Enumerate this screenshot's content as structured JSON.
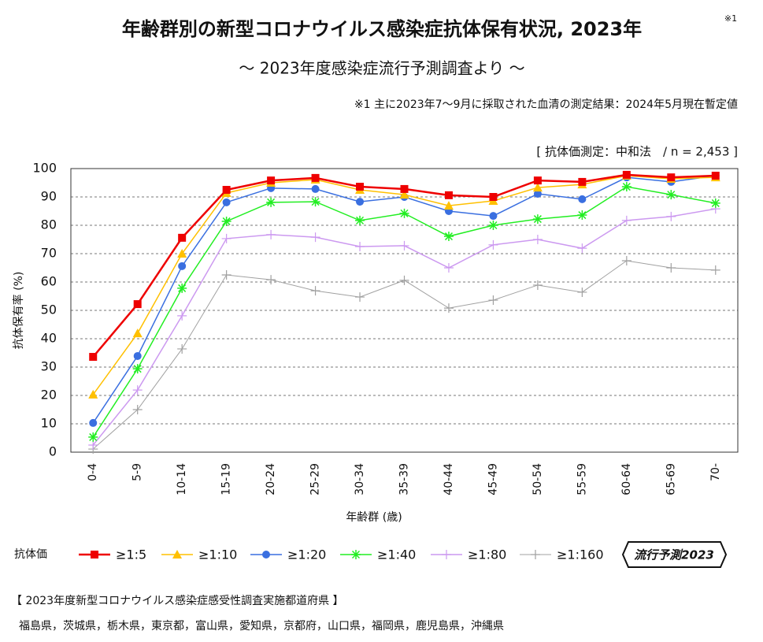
{
  "chart_data": {
    "type": "line",
    "title": "年齢群別の新型コロナウイルス感染症抗体保有状況, 2023年",
    "title_note": "※1",
    "subtitle": "～ 2023年度感染症流行予測調査より ～",
    "note": "※1  主に2023年7～9月に採取された血清の測定結果：2024年5月現在暫定値",
    "method": "[ 抗体価測定：中和法　/ n = 2,453 ]",
    "y_label": "抗体保有率 (%)",
    "x_label": "年齢群 (歳)",
    "legend_title": "抗体価",
    "badge": "流行予測2023",
    "categories": [
      "0-4",
      "5-9",
      "10-14",
      "15-19",
      "20-24",
      "25-29",
      "30-34",
      "35-39",
      "40-44",
      "45-49",
      "50-54",
      "55-59",
      "60-64",
      "65-69",
      "70-"
    ],
    "ylim": [
      0,
      100
    ],
    "yticks": [
      0,
      10,
      20,
      30,
      40,
      50,
      60,
      70,
      80,
      90,
      100
    ],
    "grid": true,
    "series": [
      {
        "name": "≥1:5",
        "color": "#ee0000",
        "marker": "square",
        "values": [
          33.6,
          52.2,
          75.6,
          92.5,
          95.8,
          96.7,
          93.6,
          92.8,
          90.6,
          90,
          95.8,
          95.3,
          97.8,
          96.9,
          97.5
        ]
      },
      {
        "name": "≥1:10",
        "color": "#ffc000",
        "marker": "triangle",
        "values": [
          20.3,
          41.9,
          70,
          91.4,
          95,
          96.1,
          92.5,
          90.8,
          86.9,
          88.6,
          93.3,
          94.4,
          97.5,
          96.4,
          96.9
        ]
      },
      {
        "name": "≥1:20",
        "color": "#3a6fe0",
        "marker": "circle",
        "values": [
          10.3,
          33.9,
          65.6,
          88.1,
          93.1,
          92.8,
          88.3,
          90,
          85,
          83.3,
          91.1,
          89.2,
          96.9,
          95.3,
          97.5
        ]
      },
      {
        "name": "≥1:40",
        "color": "#22ee22",
        "marker": "asterisk",
        "values": [
          5.3,
          29.4,
          57.8,
          81.4,
          88.1,
          88.3,
          81.7,
          84.2,
          76.1,
          80,
          82.2,
          83.6,
          93.6,
          90.8,
          87.8
        ]
      },
      {
        "name": "≥1:80",
        "color": "#cc99f0",
        "marker": "plus",
        "values": [
          2.5,
          21.9,
          48.1,
          75.3,
          76.7,
          75.8,
          72.5,
          72.8,
          65,
          73.1,
          75,
          71.9,
          81.7,
          83.1,
          85.8
        ]
      },
      {
        "name": "≥1:160",
        "color": "#a0a0a0",
        "marker": "plus",
        "values": [
          1.1,
          15,
          36.4,
          62.5,
          60.8,
          56.9,
          54.7,
          60.6,
          50.8,
          53.6,
          58.9,
          56.4,
          67.5,
          65,
          64.2
        ]
      }
    ],
    "footer_title": "【 2023年度新型コロナウイルス感染症感受性調査実施都道府県 】",
    "footer_text": "福島県，茨城県，栃木県，東京都，富山県，愛知県，京都府，山口県，福岡県，鹿児島県，沖縄県"
  }
}
